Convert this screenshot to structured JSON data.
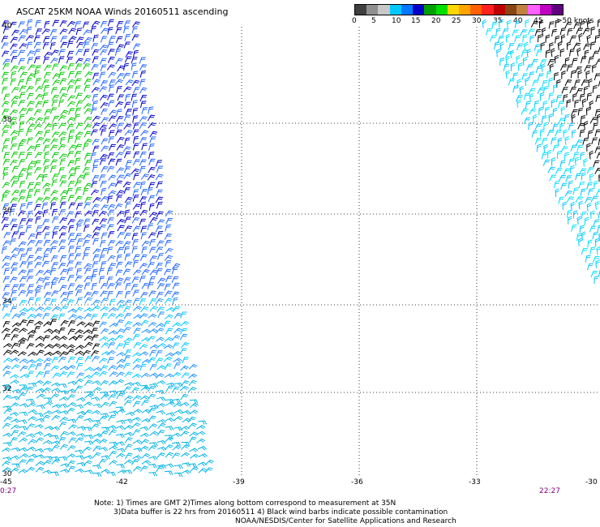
{
  "title": "ASCAT 25KM NOAA Winds 20160511 ascending",
  "colorbar": {
    "colors": [
      "#404040",
      "#909090",
      "#c8c8c8",
      "#00c8ff",
      "#0078ff",
      "#0000c8",
      "#00a000",
      "#00e000",
      "#ffd700",
      "#ffa500",
      "#ff6000",
      "#ff2020",
      "#c00000",
      "#8b4513",
      "#c08040",
      "#ff60ff",
      "#c000c0",
      "#600080"
    ],
    "labels": [
      "0",
      "5",
      "10",
      "15",
      "20",
      "25",
      "30",
      "35",
      "40",
      "45",
      ">50 knots"
    ]
  },
  "axes": {
    "lon_labels": [
      "-45",
      "-42",
      "-39",
      "-36",
      "-33",
      "-30"
    ],
    "lat_labels": [
      "40",
      "38",
      "36",
      "34",
      "32",
      "30"
    ]
  },
  "times": {
    "left": "0:27",
    "right": "22:27"
  },
  "notes": [
    "Note: 1) Times are GMT 2)Times along bottom correspond to measurement at 35N",
    "3)Data buffer is 22 hrs from 20160511 4) Black wind barbs indicate possible contamination",
    "NOAA/NESDIS/Center for Satellite Applications and Research"
  ]
}
